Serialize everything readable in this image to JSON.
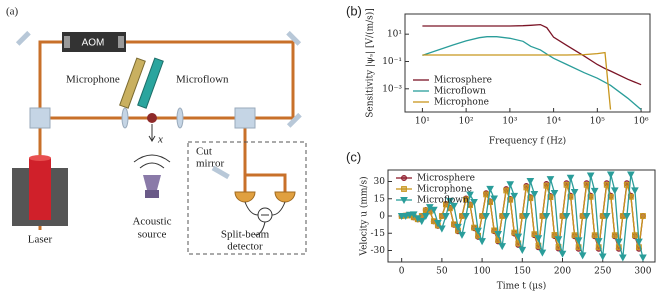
{
  "panel_labels": {
    "a": "(a)",
    "b": "(b)",
    "c": "(c)"
  },
  "diagram": {
    "aom": "AOM",
    "microphone": "Microphone",
    "microflown": "Microflown",
    "x": "x",
    "laser": "Laser",
    "acoustic_source": [
      "Acoustic",
      "source"
    ],
    "cut_mirror": [
      "Cut",
      "mirror"
    ],
    "detector": [
      "Split-beam",
      "detector"
    ]
  },
  "chart_data": [
    {
      "type": "line",
      "xlabel": "Frequency f (Hz)",
      "ylabel": "Sensitivity |ψₛ| [V/(m/s)]",
      "log_x": true,
      "log_y": true,
      "legend": "lower left",
      "x": [
        10,
        20,
        50,
        100,
        200,
        300,
        500,
        1000,
        2000,
        3000,
        5000,
        7000,
        10000,
        20000,
        50000,
        100000,
        150000,
        200000,
        500000,
        1000000
      ],
      "series": [
        {
          "name": "Microsphere",
          "color": "#7b1426",
          "values": [
            40,
            40,
            40,
            40,
            40,
            40,
            40,
            40,
            42,
            45,
            50,
            30,
            6,
            1.5,
            0.25,
            0.06,
            0.03,
            0.02,
            0.005,
            0.002
          ]
        },
        {
          "name": "Microflown",
          "color": "#2a9d9a",
          "values": [
            0.28,
            0.6,
            1.6,
            3.2,
            5.5,
            6.5,
            6.5,
            5,
            3,
            1.3,
            0.7,
            0.35,
            0.17,
            0.06,
            0.015,
            0.006,
            0.003,
            0.0018,
            0.0002,
            3e-05
          ]
        },
        {
          "name": "Microphone",
          "color": "#c8961e",
          "values": [
            0.3,
            0.3,
            0.3,
            0.3,
            0.3,
            0.3,
            0.3,
            0.3,
            0.3,
            0.3,
            0.3,
            0.3,
            0.3,
            0.3,
            0.32,
            0.38,
            0.45,
            3e-05,
            null,
            null
          ]
        }
      ],
      "xlim": [
        4,
        1600000
      ],
      "ylim": [
        2e-05,
        300
      ],
      "xticks": [
        {
          "value": 10,
          "label": "10¹"
        },
        {
          "value": 100,
          "label": "10²"
        },
        {
          "value": 1000,
          "label": "10³"
        },
        {
          "value": 10000,
          "label": "10⁴"
        },
        {
          "value": 100000,
          "label": "10⁵"
        },
        {
          "value": 1000000,
          "label": "10⁶"
        }
      ],
      "yticks": [
        {
          "value": 0.001,
          "label": "10⁻³"
        },
        {
          "value": 0.1,
          "label": "10⁻¹"
        },
        {
          "value": 10,
          "label": "10¹"
        }
      ]
    },
    {
      "type": "line",
      "xlabel": "Time t (µs)",
      "ylabel": "Velocity u (mm/s)",
      "legend": "upper left",
      "x": [
        0,
        5,
        10,
        15,
        20,
        25,
        30,
        35,
        40,
        45,
        50,
        55,
        60,
        65,
        70,
        75,
        80,
        85,
        90,
        95,
        100,
        105,
        110,
        115,
        120,
        125,
        130,
        135,
        140,
        145,
        150,
        155,
        160,
        165,
        170,
        175,
        180,
        185,
        190,
        195,
        200,
        205,
        210,
        215,
        220,
        225,
        230,
        235,
        240,
        245,
        250,
        255,
        260,
        265,
        270,
        275,
        280,
        285,
        290,
        295,
        300
      ],
      "series": [
        {
          "name": "Microsphere",
          "color": "#8e1b2b",
          "marker": "circle",
          "values": [
            0,
            0.3,
            0.6,
            -1.2,
            -2.9,
            0,
            5.2,
            4.1,
            -4.7,
            -8.6,
            0,
            10.5,
            7.1,
            -7.6,
            -13.3,
            0,
            15.2,
            10.0,
            -10.6,
            -18.1,
            0,
            19.8,
            12.7,
            -13.2,
            -22.1,
            0,
            23.4,
            14.8,
            -15.2,
            -25.1,
            0,
            26.1,
            16.3,
            -16.6,
            -27.2,
            0,
            27.8,
            17.3,
            -17.4,
            -28.3,
            0,
            28.5,
            17.6,
            -17.6,
            -28.5,
            0,
            28.5,
            17.6,
            -17.6,
            -28.5,
            0,
            28.5,
            17.6,
            -17.6,
            -28.5,
            0,
            28.5,
            17.6,
            -17.6,
            -28.5,
            0
          ]
        },
        {
          "name": "Microphone",
          "color": "#c8961e",
          "marker": "square",
          "values": [
            0,
            0.3,
            0.6,
            -1.1,
            -2.8,
            0,
            4.9,
            3.9,
            -4.5,
            -8.2,
            0,
            10.0,
            6.7,
            -7.2,
            -12.6,
            0,
            14.4,
            9.5,
            -10.1,
            -17.2,
            0,
            18.8,
            12.1,
            -12.5,
            -21.0,
            0,
            22.2,
            14.1,
            -14.4,
            -23.8,
            0,
            24.8,
            15.5,
            -15.8,
            -25.8,
            0,
            26.4,
            16.4,
            -16.5,
            -26.9,
            0,
            27.1,
            16.7,
            -16.7,
            -27.1,
            0,
            27.1,
            16.7,
            -16.7,
            -27.1,
            0,
            27.1,
            16.7,
            -16.7,
            -27.1,
            0,
            27.1,
            16.7,
            -16.7,
            -27.1,
            0
          ]
        },
        {
          "name": "Microflown",
          "color": "#2a9d9a",
          "marker": "triangle-down",
          "values": [
            0,
            0,
            1.1,
            1.4,
            -2.0,
            -4.4,
            0,
            7.7,
            5.4,
            -6.1,
            -10.9,
            0,
            13.1,
            8.8,
            -9.5,
            -16.4,
            0,
            18.6,
            12.2,
            -12.8,
            -21.9,
            0,
            23.6,
            15.2,
            -15.7,
            -26.2,
            0,
            27.6,
            17.5,
            -17.9,
            -29.5,
            0,
            30.4,
            19.1,
            -19.3,
            -31.8,
            0,
            32.1,
            20.0,
            -20.2,
            -32.8,
            0,
            33.3,
            20.9,
            -21.2,
            -34.2,
            0,
            35.2,
            21.8,
            -21.8,
            -35.2,
            0,
            36.1,
            22.3,
            -22.3,
            -36.1,
            0,
            36.1,
            22.3,
            -22.3,
            -36.1
          ]
        }
      ],
      "xlim": [
        -17,
        315
      ],
      "ylim": [
        -40,
        40
      ],
      "xticks": [
        0,
        50,
        100,
        150,
        200,
        250,
        300
      ],
      "yticks": [
        -30,
        -15,
        0,
        15,
        30
      ]
    }
  ]
}
